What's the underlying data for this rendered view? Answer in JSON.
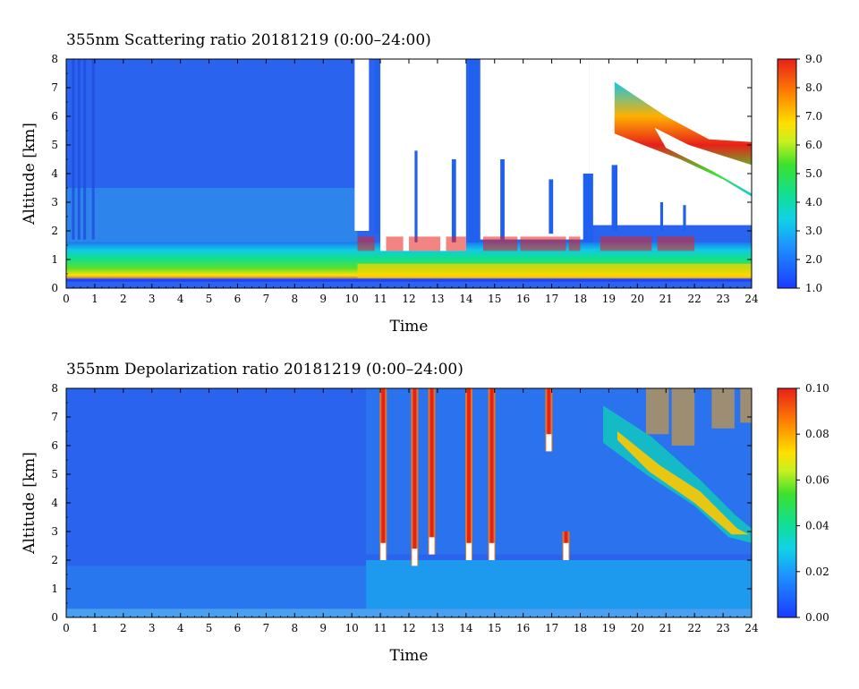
{
  "chart_data": [
    {
      "type": "heatmap",
      "title": "355nm Scattering ratio  20181219 (0:00–24:00)",
      "xlabel": "Time",
      "ylabel": "Altitude [km]",
      "xlim": [
        0,
        24
      ],
      "ylim": [
        0,
        8
      ],
      "x_ticks": [
        "0",
        "1",
        "2",
        "3",
        "4",
        "5",
        "6",
        "7",
        "8",
        "9",
        "10",
        "11",
        "12",
        "13",
        "14",
        "15",
        "16",
        "17",
        "18",
        "19",
        "20",
        "21",
        "22",
        "23",
        "24"
      ],
      "y_ticks": [
        "0",
        "1",
        "2",
        "3",
        "4",
        "5",
        "6",
        "7",
        "8"
      ],
      "colorbar": {
        "range": [
          1.0,
          9.0
        ],
        "ticks": [
          "1.0",
          "2.0",
          "3.0",
          "4.0",
          "5.0",
          "6.0",
          "7.0",
          "8.0",
          "9.0"
        ]
      },
      "white_regions": [
        {
          "t": [
            10.1,
            10.6
          ],
          "z": [
            2.0,
            8.0
          ]
        },
        {
          "t": [
            11.0,
            14.0
          ],
          "z": [
            1.3,
            8.0
          ]
        },
        {
          "t": [
            14.5,
            18.3
          ],
          "z": [
            1.7,
            8.0
          ]
        },
        {
          "t": [
            18.3,
            24.0
          ],
          "z": [
            2.2,
            8.0
          ]
        }
      ],
      "aerosol_layer": {
        "t": [
          0,
          24
        ],
        "z": [
          0.3,
          1.6
        ]
      },
      "cirrus": [
        {
          "t_start": 19.2,
          "z_start": 6.6,
          "t_end": 24.0,
          "z_end": 3.2
        }
      ]
    },
    {
      "type": "heatmap",
      "title": "355nm Depolarization ratio  20181219 (0:00–24:00)",
      "xlabel": "Time",
      "ylabel": "Altitude [km]",
      "xlim": [
        0,
        24
      ],
      "ylim": [
        0,
        8
      ],
      "x_ticks": [
        "0",
        "1",
        "2",
        "3",
        "4",
        "5",
        "6",
        "7",
        "8",
        "9",
        "10",
        "11",
        "12",
        "13",
        "14",
        "15",
        "16",
        "17",
        "18",
        "19",
        "20",
        "21",
        "22",
        "23",
        "24"
      ],
      "y_ticks": [
        "0",
        "1",
        "2",
        "3",
        "4",
        "5",
        "6",
        "7",
        "8"
      ],
      "colorbar": {
        "range": [
          0.0,
          0.1
        ],
        "ticks": [
          "0.00",
          "0.02",
          "0.04",
          "0.06",
          "0.08",
          "0.10"
        ]
      },
      "high_depol_columns": [
        {
          "t": 11.1,
          "z": [
            2.0,
            8.0
          ]
        },
        {
          "t": 12.2,
          "z": [
            1.8,
            8.0
          ]
        },
        {
          "t": 12.8,
          "z": [
            2.2,
            8.0
          ]
        },
        {
          "t": 14.1,
          "z": [
            2.0,
            8.0
          ]
        },
        {
          "t": 14.9,
          "z": [
            2.0,
            8.0
          ]
        },
        {
          "t": 16.9,
          "z": [
            5.8,
            8.0
          ]
        },
        {
          "t": 17.5,
          "z": [
            2.0,
            3.0
          ]
        }
      ],
      "cirrus": [
        {
          "t_start": 18.8,
          "z_start": 6.5,
          "t_end": 24.0,
          "z_end": 2.8
        }
      ]
    }
  ]
}
